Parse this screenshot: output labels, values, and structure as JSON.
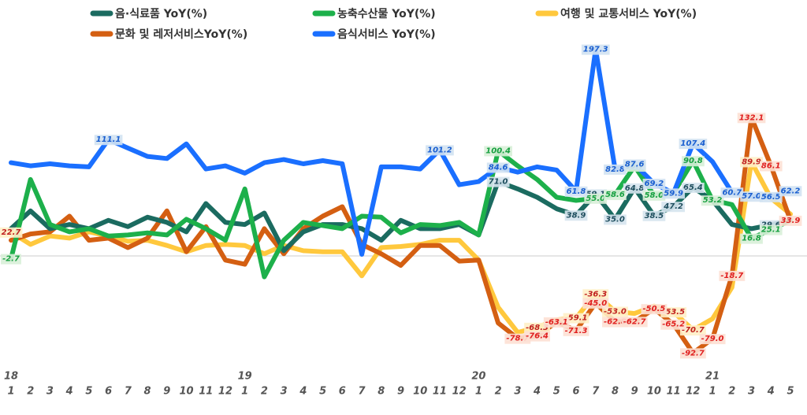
{
  "chart_data": {
    "type": "line",
    "categories": [
      "1",
      "2",
      "3",
      "4",
      "5",
      "6",
      "7",
      "8",
      "9",
      "10",
      "11",
      "12",
      "1",
      "2",
      "3",
      "4",
      "5",
      "6",
      "7",
      "8",
      "9",
      "10",
      "11",
      "12",
      "1",
      "2",
      "3",
      "4",
      "5",
      "6",
      "7",
      "8",
      "9",
      "10",
      "11",
      "12",
      "1",
      "2",
      "3",
      "4",
      "5"
    ],
    "year_row": [
      "18",
      null,
      null,
      null,
      null,
      null,
      null,
      null,
      null,
      null,
      null,
      null,
      "19",
      null,
      null,
      null,
      null,
      null,
      null,
      null,
      null,
      null,
      null,
      null,
      "20",
      null,
      null,
      null,
      null,
      null,
      null,
      null,
      null,
      null,
      null,
      null,
      "21",
      null,
      null,
      null,
      null
    ],
    "ylim": [
      -110,
      220
    ],
    "baseline": 0,
    "series": [
      {
        "name": "음·식료품 YoY(%)",
        "color": "#1b6b60",
        "label_color": "#1f4e5e",
        "label_bg": "#d6e4ee",
        "values": [
          26,
          43,
          26,
          30,
          26,
          34,
          28,
          37,
          32,
          23,
          50,
          32,
          30,
          41,
          5,
          23,
          30,
          30,
          26,
          15,
          34,
          26,
          26,
          30,
          20,
          71.0,
          64,
          56,
          45,
          38.9,
          59.1,
          35.0,
          64.8,
          38.5,
          47.2,
          65.4,
          53,
          30,
          26,
          29.6,
          34
        ],
        "value_labels": [
          null,
          null,
          null,
          null,
          null,
          null,
          null,
          null,
          null,
          null,
          null,
          null,
          null,
          null,
          null,
          null,
          null,
          null,
          null,
          null,
          null,
          null,
          null,
          null,
          null,
          "71.0",
          null,
          null,
          null,
          "38.9",
          "59.1",
          "35.0",
          "64.8",
          "38.5",
          "47.2",
          "65.4",
          null,
          null,
          null,
          "29.6",
          null
        ]
      },
      {
        "name": "농축수산물 YoY(%)",
        "color": "#1db04b",
        "label_color": "#17a040",
        "label_bg": "#d8f0d8",
        "values": [
          -2.7,
          73,
          30,
          23,
          26,
          19,
          20,
          22,
          20,
          35,
          26,
          15,
          64,
          -20,
          15,
          32,
          29,
          26,
          38,
          37,
          22,
          30,
          29,
          32,
          20,
          100.4,
          86,
          73,
          56,
          53,
          55.0,
          58.6,
          85.7,
          58.0,
          60,
          90.8,
          53.2,
          49,
          16.8,
          25.1,
          34
        ],
        "value_labels": [
          "-2.7",
          null,
          null,
          null,
          null,
          null,
          null,
          null,
          null,
          null,
          null,
          null,
          null,
          null,
          null,
          null,
          null,
          null,
          null,
          null,
          null,
          null,
          null,
          null,
          null,
          "100.4",
          null,
          null,
          null,
          null,
          "55.0",
          "58.6",
          "85.7",
          "58.0",
          null,
          "90.8",
          "53.2",
          null,
          "16.8",
          "25.1",
          null
        ]
      },
      {
        "name": "여행 및 교통서비스 YoY(%)",
        "color": "#ffc83d",
        "label_color": "#c02020",
        "label_bg": "#fff0c8",
        "values": [
          22.7,
          11,
          19,
          17,
          23,
          19,
          14,
          15,
          10,
          4,
          10,
          11,
          10,
          2,
          10,
          5,
          4,
          4,
          -19,
          8,
          9,
          11,
          15,
          15,
          -4,
          -49,
          -73,
          -68.3,
          -61,
          -59.1,
          -36.3,
          -53.0,
          -55,
          -48,
          -53.5,
          -70.7,
          -60,
          -30,
          89.9,
          55,
          40
        ],
        "value_labels": [
          "22.7",
          null,
          null,
          null,
          null,
          null,
          null,
          null,
          null,
          null,
          null,
          null,
          null,
          null,
          null,
          null,
          null,
          null,
          null,
          null,
          null,
          null,
          null,
          null,
          null,
          null,
          null,
          "-68.3",
          null,
          "-59.1",
          "-36.3",
          "-53.0",
          null,
          null,
          "-53.5",
          "-70.7",
          null,
          null,
          "89.9",
          null,
          null
        ]
      },
      {
        "name": "문화 및 레저서비스YoY(%)",
        "color": "#d45f12",
        "label_color": "#e02020",
        "label_bg": "#fde0d4",
        "values": [
          15,
          21,
          23,
          38,
          15,
          17,
          8,
          17,
          43,
          4,
          28,
          -4,
          -8,
          26,
          2,
          26,
          38,
          47,
          11,
          2,
          -9,
          10,
          10,
          -5,
          -4,
          -64,
          -78.7,
          -76.4,
          -63.1,
          -71.3,
          -45.0,
          -62.8,
          -62.7,
          -50.5,
          -65.2,
          -92.7,
          -79.0,
          -18.7,
          132.1,
          86.1,
          33.9
        ],
        "value_labels": [
          null,
          null,
          null,
          null,
          null,
          null,
          null,
          null,
          null,
          null,
          null,
          null,
          null,
          null,
          null,
          null,
          null,
          null,
          null,
          null,
          null,
          null,
          null,
          null,
          null,
          null,
          "-78.7",
          "-76.4",
          "-63.1",
          "-71.3",
          "-45.0",
          "-62.8",
          "-62.7",
          "-50.5",
          "-65.2",
          "-92.7",
          "-79.0",
          "-18.7",
          "132.1",
          "86.1",
          "33.9"
        ]
      },
      {
        "name": "음식서비스 YoY(%)",
        "color": "#1a6fff",
        "label_color": "#1a5fd0",
        "label_bg": "#d2e2f2",
        "values": [
          89,
          86,
          88,
          86,
          85,
          111.1,
          103,
          95,
          93,
          107,
          83,
          86,
          79,
          89,
          92,
          88,
          91,
          88,
          1.5,
          85,
          85,
          83,
          101.2,
          68,
          71,
          84.6,
          80,
          85,
          82,
          61.8,
          197.3,
          82.8,
          87.6,
          69.2,
          59.9,
          107.4,
          90,
          60.7,
          57.0,
          56.5,
          62.2
        ],
        "value_labels": [
          null,
          null,
          null,
          null,
          null,
          "111.1",
          null,
          null,
          null,
          null,
          null,
          null,
          null,
          null,
          null,
          null,
          null,
          null,
          null,
          null,
          null,
          null,
          "101.2",
          null,
          null,
          "84.6",
          null,
          null,
          null,
          "61.8",
          "197.3",
          "82.8",
          "87.6",
          "69.2",
          "59.9",
          "107.4",
          null,
          "60.7",
          "57.0",
          "56.5",
          "62.2"
        ]
      }
    ]
  }
}
